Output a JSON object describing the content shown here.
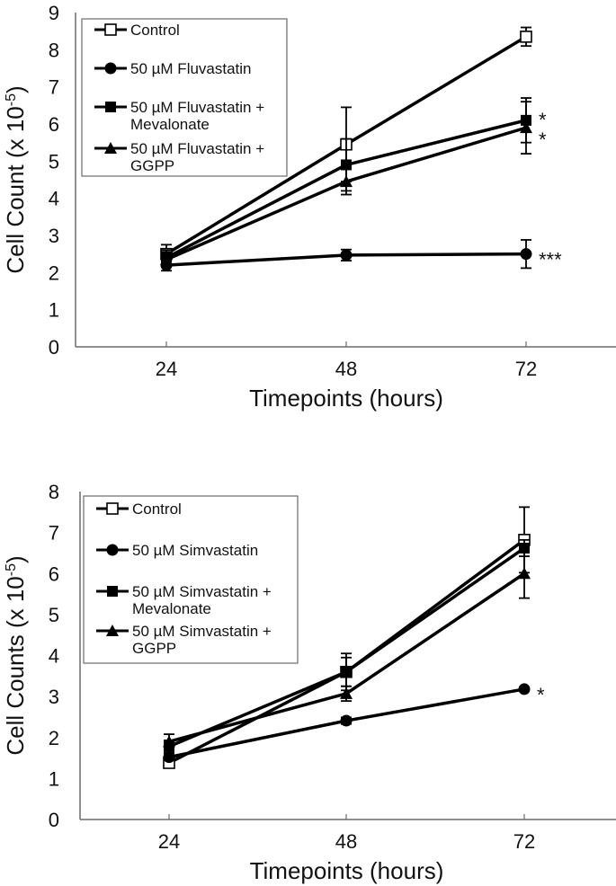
{
  "colors": {
    "line": "#000000",
    "axis": "#6b6b6b",
    "legend_border": "#6b6b6b",
    "background": "#ffffff"
  },
  "chart_data": [
    {
      "type": "line",
      "title": "",
      "xlabel": "Timepoints (hours)",
      "ylabel": "Cell Count (x 10",
      "ylabel_sup": "-5",
      "ylabel_close": ")",
      "x": [
        24,
        48,
        72
      ],
      "x_tick_labels": [
        "24",
        "48",
        "72"
      ],
      "ylim": [
        0,
        9
      ],
      "y_ticks": [
        0,
        1,
        2,
        3,
        4,
        5,
        6,
        7,
        8,
        9
      ],
      "grid": false,
      "legend_position": "top-left",
      "series": [
        {
          "name": "Control",
          "legend_lines": [
            "Control"
          ],
          "marker": "open-square",
          "values": [
            2.5,
            5.45,
            8.35
          ],
          "error": [
            0.25,
            1.0,
            0.25
          ],
          "annotation": ""
        },
        {
          "name": "50 µM Fluvastatin",
          "legend_lines": [
            "50 µM Fluvastatin"
          ],
          "marker": "circle",
          "values": [
            2.2,
            2.47,
            2.5
          ],
          "error": [
            0.15,
            0.15,
            0.38
          ],
          "annotation": "***"
        },
        {
          "name": "50 µM Fluvastatin + Mevalonate",
          "legend_lines": [
            "50 µM Fluvastatin +",
            "Mevalonate"
          ],
          "marker": "square",
          "values": [
            2.4,
            4.9,
            6.1
          ],
          "error": [
            0.2,
            0.7,
            0.6
          ],
          "annotation": "*"
        },
        {
          "name": "50 µM Fluvastatin + GGPP",
          "legend_lines": [
            "50 µM Fluvastatin +",
            "GGPP"
          ],
          "marker": "triangle",
          "values": [
            2.35,
            4.45,
            5.9
          ],
          "error": [
            0.2,
            0.35,
            0.7
          ],
          "annotation": "*"
        }
      ]
    },
    {
      "type": "line",
      "title": "",
      "xlabel": "Timepoints (hours)",
      "ylabel": "Cell Counts (x 10",
      "ylabel_sup": "-5",
      "ylabel_close": ")",
      "x": [
        24,
        48,
        72
      ],
      "x_tick_labels": [
        "24",
        "48",
        "72"
      ],
      "ylim": [
        0,
        8
      ],
      "y_ticks": [
        0,
        1,
        2,
        3,
        4,
        5,
        6,
        7,
        8
      ],
      "grid": false,
      "legend_position": "top-left",
      "series": [
        {
          "name": "Control",
          "legend_lines": [
            "Control"
          ],
          "marker": "open-square",
          "values": [
            1.38,
            3.6,
            6.82
          ],
          "error": [
            0.1,
            0.45,
            0.8
          ],
          "annotation": ""
        },
        {
          "name": "50 µM Simvastatin",
          "legend_lines": [
            "50 µM Simvastatin"
          ],
          "marker": "circle",
          "values": [
            1.52,
            2.41,
            3.18
          ],
          "error": [
            0.08,
            0.08,
            0.05
          ],
          "annotation": "*"
        },
        {
          "name": "50 µM Simvastatin + Mevalonate",
          "legend_lines": [
            "50 µM Simvastatin +",
            "Mevalonate"
          ],
          "marker": "square",
          "values": [
            1.78,
            3.6,
            6.62
          ],
          "error": [
            0.15,
            0.35,
            0.2
          ],
          "annotation": ""
        },
        {
          "name": "50 µM Simvastatin + GGPP",
          "legend_lines": [
            "50 µM Simvastatin +",
            "GGPP"
          ],
          "marker": "triangle",
          "values": [
            1.9,
            3.07,
            6.0
          ],
          "error": [
            0.18,
            0.18,
            0.6
          ],
          "annotation": ""
        }
      ]
    }
  ]
}
